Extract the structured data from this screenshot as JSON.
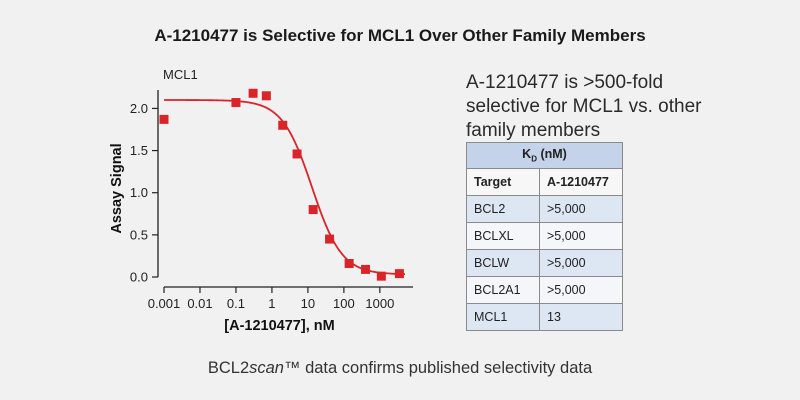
{
  "title": "A-1210477 is Selective for MCL1 Over Other Family Members",
  "note": "A-1210477 is >500-fold selective for MCL1 vs. other family members",
  "caption_pre": "BCL2",
  "caption_italic": "scan",
  "caption_post": "™ data confirms published selectivity data",
  "colors": {
    "series": "#d9252a",
    "axis": "#222222",
    "table_header": "#c4d3ea",
    "table_row": "#dde6f3"
  },
  "table": {
    "header_letter": "K",
    "header_sub": "D",
    "header_unit": "(nM)",
    "columns": [
      "Target",
      "A-1210477"
    ],
    "rows": [
      [
        "BCL2",
        ">5,000"
      ],
      [
        "BCLXL",
        ">5,000"
      ],
      [
        "BCLW",
        ">5,000"
      ],
      [
        "BCL2A1",
        ">5,000"
      ],
      [
        "MCL1",
        "13"
      ]
    ]
  },
  "chart_data": {
    "type": "scatter",
    "panel_label": "MCL1",
    "title": "",
    "xlabel": "[A-1210477], nM",
    "ylabel": "Assay Signal",
    "x_scale": "log",
    "xlim": [
      0.001,
      5000
    ],
    "ylim": [
      0,
      2.1
    ],
    "xticks": [
      0.001,
      0.01,
      0.1,
      1,
      10,
      100,
      1000
    ],
    "xtick_labels": [
      "0.001",
      "0.01",
      "0.1",
      "1",
      "10",
      "100",
      "1000"
    ],
    "yticks": [
      0,
      0.5,
      1,
      1.5,
      2
    ],
    "ytick_labels": [
      "0.0",
      "0.5",
      "1.0",
      "1.5",
      "2.0"
    ],
    "grid": false,
    "series": [
      {
        "values": [
          {
            "x": 0.001,
            "y": 1.87
          },
          {
            "x": 0.1,
            "y": 2.07
          },
          {
            "x": 0.3,
            "y": 2.18
          },
          {
            "x": 0.7,
            "y": 2.15
          },
          {
            "x": 2,
            "y": 1.8
          },
          {
            "x": 5,
            "y": 1.46
          },
          {
            "x": 14,
            "y": 0.8
          },
          {
            "x": 40,
            "y": 0.45
          },
          {
            "x": 140,
            "y": 0.16
          },
          {
            "x": 400,
            "y": 0.09
          },
          {
            "x": 1100,
            "y": 0.01
          },
          {
            "x": 3500,
            "y": 0.04
          }
        ],
        "fit": {
          "model": "4PL",
          "top": 2.1,
          "bottom": 0.03,
          "ic50": 13,
          "hill": 1.05
        }
      }
    ]
  }
}
